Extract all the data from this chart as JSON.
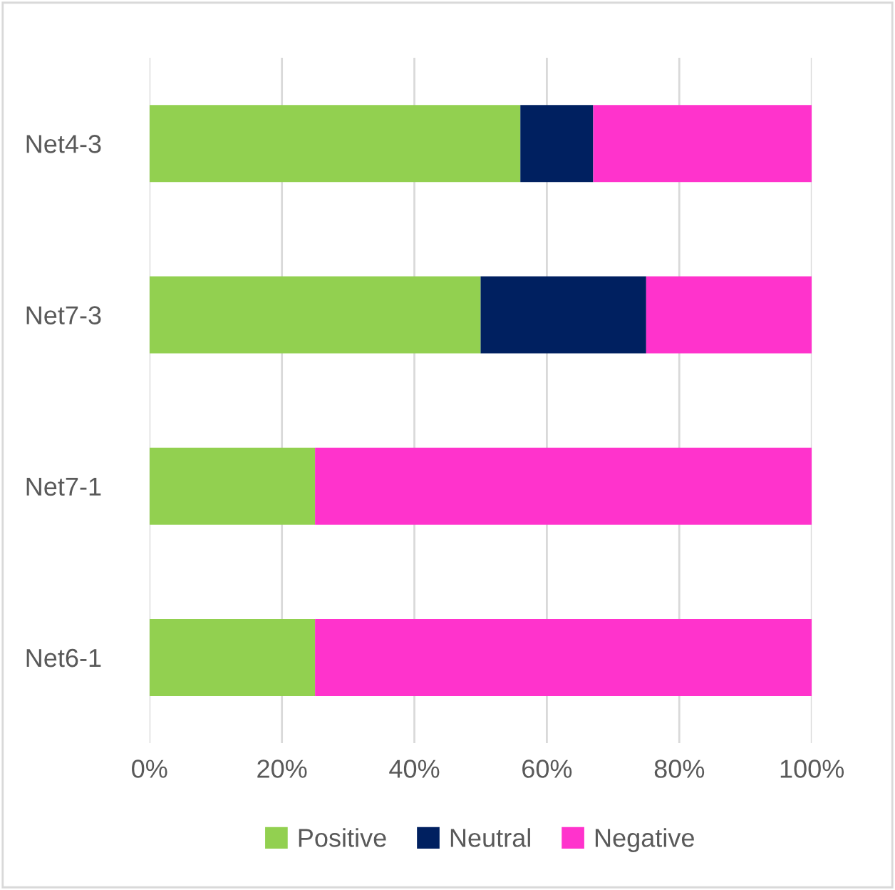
{
  "chart_data": {
    "type": "bar",
    "orientation": "horizontal",
    "stacked": true,
    "categories": [
      "Net4-3",
      "Net7-3",
      "Net7-1",
      "Net6-1"
    ],
    "series": [
      {
        "name": "Positive",
        "color": "#92d050",
        "values": [
          56,
          50,
          25,
          25
        ]
      },
      {
        "name": "Neutral",
        "color": "#002060",
        "values": [
          11,
          25,
          0,
          0
        ]
      },
      {
        "name": "Negative",
        "color": "#ff33cc",
        "values": [
          33,
          25,
          75,
          75
        ]
      }
    ],
    "xlim": [
      0,
      100
    ],
    "xticks": [
      {
        "value": 0,
        "label": "0%"
      },
      {
        "value": 20,
        "label": "20%"
      },
      {
        "value": 40,
        "label": "40%"
      },
      {
        "value": 60,
        "label": "60%"
      },
      {
        "value": 80,
        "label": "80%"
      },
      {
        "value": 100,
        "label": "100%"
      }
    ],
    "grid": "x",
    "legend": "bottom"
  }
}
